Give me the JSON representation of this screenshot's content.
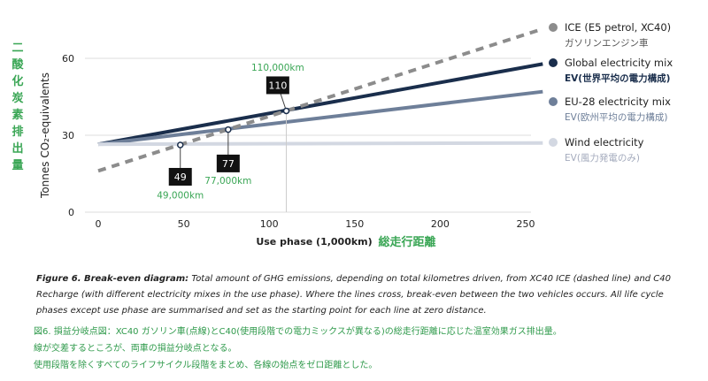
{
  "chart_data": {
    "type": "line",
    "xlabel": "Use phase (1,000km)",
    "xlabel_jp": "総走行距離",
    "ylabel": "Tonnes CO₂-equivalents",
    "ylabel_jp": "二酸化炭素排出量",
    "xlim": [
      0,
      260
    ],
    "ylim": [
      0,
      60
    ],
    "x_ticks": [
      0,
      50,
      100,
      150,
      200,
      250
    ],
    "y_ticks": [
      0,
      30,
      60
    ],
    "grid": "horizontal",
    "legend_position": "right",
    "series": [
      {
        "name": "ICE (E5 petrol, XC40)",
        "name_jp": "ガソリンエンジン車",
        "style": "dashed",
        "color": "#8c8c8c",
        "legend_color": "#8c8c8c",
        "jp_color": "#555555",
        "x": [
          0,
          260
        ],
        "y": [
          16.1,
          71.5
        ]
      },
      {
        "name": "Global electricity mix",
        "name_jp": "EV(世界平均の電力構成)",
        "style": "solid",
        "color": "#1a2e4c",
        "legend_color": "#1a2e4c",
        "jp_color": "#1a2e4c",
        "x": [
          0,
          260
        ],
        "y": [
          26.5,
          57.8
        ]
      },
      {
        "name": "EU-28 electricity mix",
        "name_jp": "EV(欧州平均の電力構成)",
        "style": "solid",
        "color": "#6e7f99",
        "legend_color": "#6e7f99",
        "jp_color": "#6e7f99",
        "x": [
          0,
          260
        ],
        "y": [
          26.5,
          47
        ]
      },
      {
        "name": "Wind electricity",
        "name_jp": "EV(風力発電のみ)",
        "style": "solid",
        "color": "#d3d8e2",
        "legend_color": "#d3d8e2",
        "jp_color": "#a4abbd",
        "x": [
          0,
          260
        ],
        "y": [
          26.5,
          27
        ]
      }
    ],
    "annotations": [
      {
        "label": "110",
        "km_label": "110,000km",
        "x": 110,
        "y": 39.5,
        "box_x": 105,
        "box_y": 49.5,
        "km_y": 56.5,
        "km_pos": "above"
      },
      {
        "label": "77",
        "km_label": "77,000km",
        "x": 76,
        "y": 32.2,
        "box_x": 76,
        "box_y": 19,
        "km_y": 12.5,
        "km_pos": "below"
      },
      {
        "label": "49",
        "km_label": "49,000km",
        "x": 48,
        "y": 26.2,
        "box_x": 48,
        "box_y": 13.8,
        "km_y": 6.8,
        "km_pos": "below"
      }
    ]
  },
  "caption": {
    "title": "Figure 6. Break-even diagram:",
    "body": " Total amount of GHG emissions, depending on total kilometres driven, from XC40 ICE (dashed line) and C40 Recharge (with different electricity mixes in the use phase). Where the lines cross, break-even between the two vehicles occurs. All life cycle phases except use phase are summarised and set as the starting point for each line at zero distance."
  },
  "caption_jp": {
    "line1": "図6. 損益分岐点図：XC40 ガソリン車(点線)とC40(使用段階での電力ミックスが異なる)の総走行距離に応じた温室効果ガス排出量。",
    "line2": "線が交差するところが、両車の損益分岐点となる。",
    "line3": "使用段階を除くすべてのライフサイクル段階をまとめ、各線の始点をゼロ距離とした。"
  }
}
